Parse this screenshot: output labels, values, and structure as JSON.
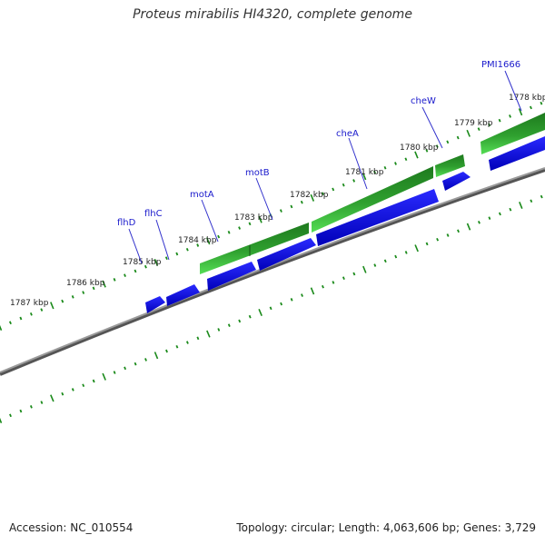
{
  "title": "Proteus mirabilis HI4320, complete genome",
  "accession_text": "Accession: NC_010554",
  "stats_text": "Topology: circular; Length: 4,063,606 bp; Genes: 3,729",
  "colors": {
    "backbone": "#888888",
    "backbone_shadow": "#555555",
    "tick": "#1a8a1a",
    "gene_blue": "#1a1ae6",
    "gene_blue_dark": "#0000a0",
    "green_dark": "#1e7a1e",
    "green_light": "#44cc44",
    "label_line": "#3333cc"
  },
  "scale": {
    "unit": "kbp",
    "tick_labels": [
      "1778 kbp",
      "1779 kbp",
      "1780 kbp",
      "1781 kbp",
      "1782 kbp",
      "1783 kbp",
      "1784 kbp",
      "1785 kbp",
      "1786 kbp",
      "1787 kbp"
    ]
  },
  "genes": [
    {
      "name": "PMI1666",
      "strand": "+"
    },
    {
      "name": "cheW",
      "strand": "-"
    },
    {
      "name": "cheA",
      "strand": "-"
    },
    {
      "name": "motB",
      "strand": "-"
    },
    {
      "name": "motA",
      "strand": "-"
    },
    {
      "name": "flhC",
      "strand": "-"
    },
    {
      "name": "flhD",
      "strand": "-"
    }
  ]
}
